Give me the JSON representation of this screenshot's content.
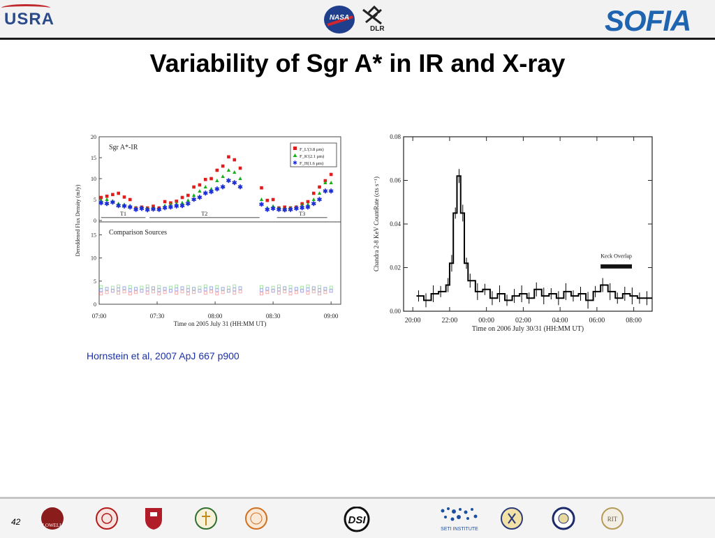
{
  "header": {
    "logos": [
      "USRA",
      "NASA",
      "DLR",
      "SOFIA"
    ],
    "usra_label": "USRA",
    "nasa_label": "NASA",
    "dlr_label": "DLR",
    "sofia_label": "SOFIA"
  },
  "title": "Variability of Sgr A* in IR and X-ray",
  "citation": "Hornstein et al, 2007 ApJ 667 p900",
  "page_number": "42",
  "footer": {
    "logo_icons": [
      "lowell-logo-icon",
      "cornell-seal-icon",
      "university-shield-icon",
      "university-seal-icon",
      "college-seal-icon",
      "dsi-logo-icon",
      "seti-institute-logo-icon",
      "university-seal-icon",
      "university-seal-icon",
      "rit-seal-icon"
    ],
    "dsi_label": "DSI",
    "seti_label": "SETI INSTITUTE",
    "rit_label": "RIT"
  },
  "chart_data": [
    {
      "type": "scatter",
      "title": "",
      "panel_labels": [
        "Sgr A*-IR",
        "Comparison Sources"
      ],
      "xlabel": "Time on 2005 July 31 (HH:MM UT)",
      "ylabel": "Dereddened Flux Density (mJy)",
      "x_ticks": [
        "07:00",
        "07:30",
        "08:00",
        "08:30",
        "09:00"
      ],
      "xlim_minutes": [
        0,
        125
      ],
      "upper_y_ticks": [
        "20",
        "15",
        "10",
        "5",
        "0"
      ],
      "lower_y_ticks": [
        "15",
        "10",
        "5",
        "0"
      ],
      "ylim": [
        0,
        20
      ],
      "legend_position": "top-right",
      "legend": [
        "F_L'(3.8 μm)",
        "F_K'(2.1 μm)",
        "F_H(1.6 μm)"
      ],
      "interval_labels": [
        "T1",
        "T2",
        "T3"
      ],
      "colors": {
        "L": "#e01c1c",
        "K": "#18b018",
        "H": "#1c2cd8"
      },
      "series": [
        {
          "name": "L'",
          "x": [
            1,
            4,
            7,
            10,
            13,
            16,
            19,
            22,
            25,
            28,
            31,
            34,
            37,
            40,
            43,
            46,
            49,
            52,
            55,
            58,
            61,
            64,
            67,
            70,
            73,
            84,
            87,
            90,
            93,
            96,
            99,
            102,
            105,
            108,
            111,
            114,
            117,
            120
          ],
          "y": [
            5.5,
            5.8,
            6.2,
            6.5,
            5.6,
            5.0,
            3.0,
            3.2,
            3.0,
            3.4,
            3.0,
            4.5,
            4.2,
            4.6,
            5.5,
            6.0,
            8.0,
            8.5,
            9.8,
            10.0,
            12.0,
            13.0,
            15.2,
            14.5,
            12.5,
            7.8,
            4.8,
            5.0,
            3.0,
            3.2,
            3.0,
            3.2,
            4.0,
            4.5,
            6.5,
            8.0,
            9.5,
            11.0
          ],
          "values_approximate": true
        },
        {
          "name": "K'",
          "x": [
            1,
            4,
            7,
            10,
            13,
            16,
            19,
            22,
            25,
            28,
            31,
            34,
            37,
            40,
            43,
            46,
            49,
            52,
            55,
            58,
            61,
            64,
            67,
            70,
            73,
            84,
            87,
            90,
            93,
            96,
            99,
            102,
            105,
            108,
            111,
            114,
            117,
            120
          ],
          "y": [
            4.8,
            5.0,
            4.6,
            4.0,
            3.8,
            3.5,
            3.0,
            3.1,
            2.9,
            3.0,
            2.8,
            3.5,
            3.8,
            4.0,
            4.2,
            4.8,
            6.0,
            7.0,
            8.0,
            7.5,
            9.5,
            10.5,
            12.0,
            11.5,
            10.0,
            5.0,
            3.0,
            3.4,
            3.0,
            2.8,
            3.0,
            3.2,
            3.6,
            3.8,
            5.0,
            6.5,
            9.0,
            9.0
          ],
          "values_approximate": true
        },
        {
          "name": "H",
          "x": [
            1,
            4,
            7,
            10,
            13,
            16,
            19,
            22,
            25,
            28,
            31,
            34,
            37,
            40,
            43,
            46,
            49,
            52,
            55,
            58,
            61,
            64,
            67,
            70,
            73,
            84,
            87,
            90,
            93,
            96,
            99,
            102,
            105,
            108,
            111,
            114,
            117,
            120
          ],
          "y": [
            4.2,
            4.0,
            4.3,
            3.5,
            3.4,
            3.2,
            2.6,
            2.8,
            2.5,
            2.7,
            2.6,
            3.0,
            3.2,
            3.4,
            3.5,
            4.0,
            5.0,
            5.5,
            6.5,
            6.8,
            7.5,
            8.0,
            9.5,
            9.0,
            8.0,
            3.8,
            2.6,
            2.8,
            2.6,
            2.5,
            2.6,
            2.8,
            3.0,
            3.2,
            4.0,
            5.0,
            7.0,
            7.0
          ],
          "values_approximate": true
        }
      ]
    },
    {
      "type": "line",
      "title": "",
      "xlabel": "Time on 2006 July 30/31 (HH:MM UT)",
      "ylabel": "Chandra 2-8 KeV CountRate (cts s⁻¹)",
      "x_ticks": [
        "20:00",
        "22:00",
        "00:00",
        "02:00",
        "04:00",
        "06:00",
        "08:00"
      ],
      "x_hours": [
        20,
        22,
        24,
        26,
        28,
        30,
        32
      ],
      "xlim_hours": [
        19.5,
        33.0
      ],
      "y_ticks": [
        "0.08",
        "0.06",
        "0.04",
        "0.02",
        "0.00"
      ],
      "ylim": [
        0.0,
        0.08
      ],
      "annotation": "Keck Overlap",
      "overlap_hours": [
        30.2,
        31.9
      ],
      "series": [
        {
          "name": "",
          "x": [
            20.2,
            20.6,
            21.0,
            21.4,
            21.8,
            22.0,
            22.2,
            22.4,
            22.6,
            22.8,
            23.0,
            23.4,
            23.8,
            24.2,
            24.6,
            25.0,
            25.4,
            25.8,
            26.2,
            26.6,
            27.0,
            27.4,
            27.8,
            28.2,
            28.6,
            29.0,
            29.4,
            29.8,
            30.2,
            30.6,
            31.0,
            31.4,
            31.8,
            32.2,
            32.6
          ],
          "y": [
            0.007,
            0.005,
            0.008,
            0.009,
            0.012,
            0.022,
            0.045,
            0.062,
            0.045,
            0.022,
            0.014,
            0.009,
            0.01,
            0.006,
            0.008,
            0.005,
            0.007,
            0.008,
            0.006,
            0.01,
            0.007,
            0.008,
            0.006,
            0.009,
            0.007,
            0.008,
            0.005,
            0.009,
            0.012,
            0.009,
            0.006,
            0.008,
            0.007,
            0.006,
            0.006
          ],
          "values_approximate": true
        }
      ]
    }
  ]
}
